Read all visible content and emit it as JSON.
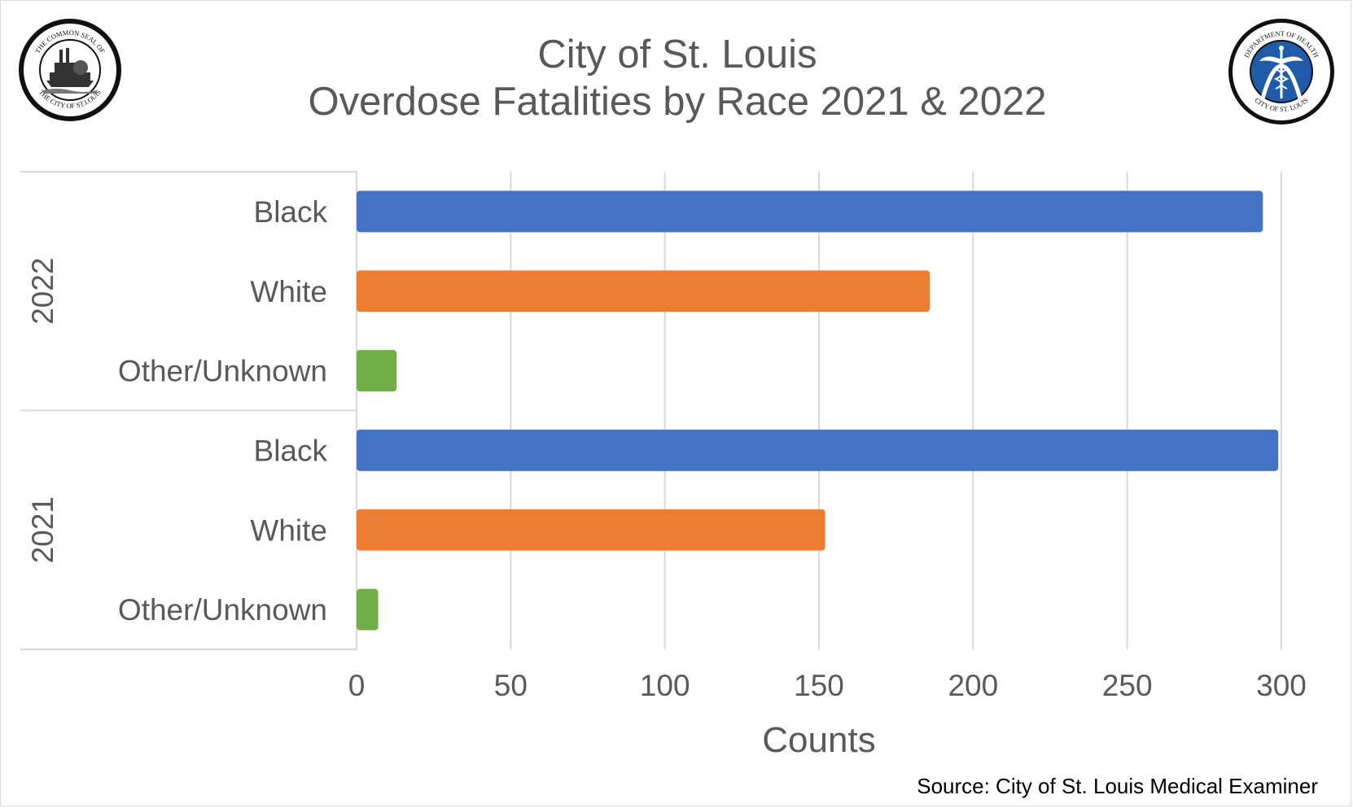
{
  "chart_data": {
    "type": "bar",
    "orientation": "horizontal",
    "title": "City of St. Louis",
    "subtitle": "Overdose Fatalities by Race 2021 & 2022",
    "xlabel": "Counts",
    "ylabel": "",
    "xlim": [
      0,
      300
    ],
    "xticks": [
      0,
      50,
      100,
      150,
      200,
      250,
      300
    ],
    "grid": "vertical",
    "legend": "none",
    "groups": [
      {
        "group": "2022",
        "bars": [
          {
            "category": "Black",
            "value": 294,
            "color": "#4472c4"
          },
          {
            "category": "White",
            "value": 186,
            "color": "#ed7d31"
          },
          {
            "category": "Other/Unknown",
            "value": 13,
            "color": "#70ad47"
          }
        ]
      },
      {
        "group": "2021",
        "bars": [
          {
            "category": "Black",
            "value": 299,
            "color": "#4472c4"
          },
          {
            "category": "White",
            "value": 152,
            "color": "#ed7d31"
          },
          {
            "category": "Other/Unknown",
            "value": 7,
            "color": "#70ad47"
          }
        ]
      }
    ],
    "source": "Source: City of St. Louis Medical Examiner"
  },
  "logos": {
    "left": {
      "icon": "city-seal",
      "text_top": "THE COMMON SEAL OF",
      "text_bottom": "THE CITY OF ST.LOUIS"
    },
    "right": {
      "icon": "department-of-health-seal",
      "text_top": "DEPARTMENT OF HEALTH",
      "text_bottom": "CITY OF ST. LOUIS",
      "accent": "#1f5ba8"
    }
  }
}
